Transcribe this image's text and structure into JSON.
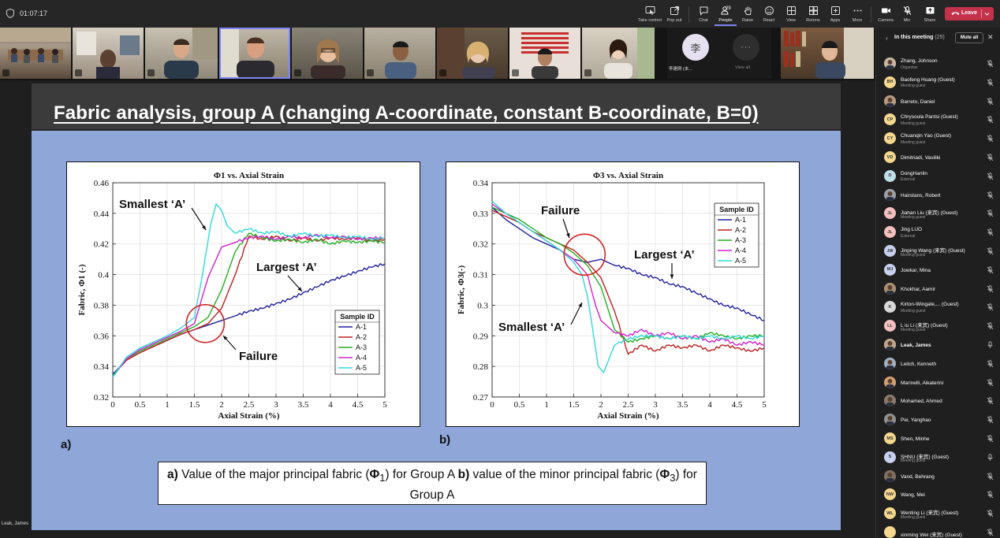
{
  "toolbar": {
    "timer": "01:07:17",
    "buttons": [
      {
        "id": "take-control",
        "label": "Take control",
        "icon": "take-control-icon"
      },
      {
        "id": "pop-out",
        "label": "Pop out",
        "icon": "pop-out-icon"
      },
      {
        "id": "chat",
        "label": "Chat",
        "icon": "chat-icon"
      },
      {
        "id": "people",
        "label": "People",
        "icon": "people-icon",
        "badge": "29",
        "active": true
      },
      {
        "id": "raise",
        "label": "Raise",
        "icon": "raise-hand-icon"
      },
      {
        "id": "react",
        "label": "React",
        "icon": "react-icon"
      },
      {
        "id": "view",
        "label": "View",
        "icon": "view-icon"
      },
      {
        "id": "rooms",
        "label": "Rooms",
        "icon": "rooms-icon"
      },
      {
        "id": "apps",
        "label": "Apps",
        "icon": "apps-icon"
      },
      {
        "id": "more",
        "label": "More",
        "icon": "more-icon"
      },
      {
        "id": "camera",
        "label": "Camera",
        "icon": "camera-icon"
      },
      {
        "id": "mic",
        "label": "Mic",
        "icon": "mic-off-icon"
      },
      {
        "id": "share",
        "label": "Share",
        "icon": "share-icon"
      }
    ],
    "leave_label": "Leave",
    "accent": "#7f85f5",
    "leave_color": "#c4314b"
  },
  "video_strip": {
    "avatar_tile": {
      "initial": "李",
      "name": "李建刚 (未..."
    },
    "more_tile": {
      "label": "View all"
    }
  },
  "slide": {
    "title": "Fabric analysis, group A (changing A-coordinate, constant B-coordinate, B=0)",
    "panel_a_label": "a)",
    "panel_b_label": "b)",
    "caption": {
      "a_bold": "a)",
      "a_text_before": " Value of the major principal fabric (",
      "a_sym": "Φ",
      "a_sub": "1",
      "a_text_after": ") for Group A ",
      "b_bold": "b)",
      "b_text_before": " value of the minor principal fabric  (",
      "b_sym": "Φ",
      "b_sub": "3",
      "b_text_after": ") for Group A"
    },
    "presenter": "Leak, James"
  },
  "chart_data": [
    {
      "type": "line",
      "title": "Φ1 vs. Axial Strain",
      "xlabel": "Axial Strain (%)",
      "ylabel": "Fabric, Φ1 (-)",
      "xlim": [
        0,
        5
      ],
      "ylim": [
        0.32,
        0.46
      ],
      "xticks": [
        "0",
        "0.5",
        "1",
        "1.5",
        "2",
        "2.5",
        "3",
        "3.5",
        "4",
        "4.5",
        "5"
      ],
      "yticks": [
        "0.32",
        "0.34",
        "0.36",
        "0.38",
        "0.4",
        "0.42",
        "0.44",
        "0.46"
      ],
      "legend_title": "Sample ID",
      "legend_position": "bottom-right",
      "grid": true,
      "annotations": [
        "Smallest ‘A’",
        "Largest ‘A’",
        "Failure"
      ],
      "series": [
        {
          "name": "A-1",
          "color": "#2020a0",
          "x": [
            0,
            0.25,
            0.5,
            0.75,
            1,
            1.25,
            1.5,
            1.75,
            2,
            2.25,
            2.5,
            2.75,
            3,
            3.25,
            3.5,
            3.75,
            4,
            4.25,
            4.5,
            4.75,
            5
          ],
          "y": [
            0.335,
            0.344,
            0.349,
            0.353,
            0.357,
            0.361,
            0.364,
            0.367,
            0.37,
            0.373,
            0.376,
            0.378,
            0.381,
            0.384,
            0.388,
            0.392,
            0.396,
            0.399,
            0.402,
            0.405,
            0.407
          ]
        },
        {
          "name": "A-2",
          "color": "#c02020",
          "x": [
            0,
            0.25,
            0.5,
            0.75,
            1,
            1.25,
            1.5,
            1.75,
            2,
            2.25,
            2.5,
            2.75,
            3,
            3.25,
            3.5,
            3.75,
            4,
            4.25,
            4.5,
            4.75,
            5
          ],
          "y": [
            0.334,
            0.344,
            0.349,
            0.353,
            0.357,
            0.361,
            0.364,
            0.368,
            0.378,
            0.4,
            0.425,
            0.423,
            0.425,
            0.422,
            0.424,
            0.422,
            0.424,
            0.423,
            0.424,
            0.422,
            0.423
          ]
        },
        {
          "name": "A-3",
          "color": "#20b020",
          "x": [
            0,
            0.25,
            0.5,
            0.75,
            1,
            1.25,
            1.5,
            1.75,
            2,
            2.25,
            2.5,
            2.75,
            3,
            3.25,
            3.5,
            3.75,
            4,
            4.25,
            4.5,
            4.75,
            5
          ],
          "y": [
            0.334,
            0.345,
            0.35,
            0.354,
            0.358,
            0.362,
            0.366,
            0.372,
            0.39,
            0.415,
            0.427,
            0.424,
            0.422,
            0.423,
            0.421,
            0.423,
            0.42,
            0.422,
            0.421,
            0.422,
            0.421
          ]
        },
        {
          "name": "A-4",
          "color": "#d020d0",
          "x": [
            0,
            0.25,
            0.5,
            0.75,
            1,
            1.25,
            1.5,
            1.75,
            2,
            2.25,
            2.5,
            2.75,
            3,
            3.25,
            3.5,
            3.75,
            4,
            4.25,
            4.5,
            4.75,
            5
          ],
          "y": [
            0.333,
            0.345,
            0.351,
            0.355,
            0.359,
            0.363,
            0.368,
            0.398,
            0.418,
            0.421,
            0.424,
            0.425,
            0.423,
            0.425,
            0.424,
            0.426,
            0.424,
            0.425,
            0.423,
            0.424,
            0.424
          ]
        },
        {
          "name": "A-5",
          "color": "#30d8d8",
          "x": [
            0,
            0.25,
            0.5,
            0.75,
            1,
            1.25,
            1.5,
            1.65,
            1.8,
            1.9,
            2,
            2.1,
            2.25,
            2.5,
            2.75,
            3,
            3.25,
            3.5,
            3.75,
            4,
            4.25,
            4.5,
            4.75,
            5
          ],
          "y": [
            0.333,
            0.346,
            0.352,
            0.356,
            0.36,
            0.365,
            0.372,
            0.4,
            0.433,
            0.446,
            0.442,
            0.432,
            0.427,
            0.43,
            0.427,
            0.428,
            0.425,
            0.427,
            0.425,
            0.426,
            0.424,
            0.425,
            0.423,
            0.424
          ]
        }
      ]
    },
    {
      "type": "line",
      "title": "Φ3 vs. Axial Strain",
      "xlabel": "Axial Strain (%)",
      "ylabel": "Fabric, Φ3(-)",
      "xlim": [
        0,
        5
      ],
      "ylim": [
        0.27,
        0.34
      ],
      "xticks": [
        "0",
        "0.5",
        "1",
        "1.5",
        "2",
        "2.5",
        "3",
        "3.5",
        "4",
        "4.5",
        "5"
      ],
      "yticks": [
        "0.27",
        "0.28",
        "0.29",
        "0.3",
        "0.31",
        "0.32",
        "0.33",
        "0.34"
      ],
      "legend_title": "Sample ID",
      "legend_position": "top-right",
      "grid": true,
      "annotations": [
        "Failure",
        "Largest ‘A’",
        "Smallest ‘A’"
      ],
      "series": [
        {
          "name": "A-1",
          "color": "#2020a0",
          "x": [
            0,
            0.25,
            0.5,
            0.75,
            1,
            1.25,
            1.5,
            1.75,
            2,
            2.25,
            2.5,
            2.75,
            3,
            3.25,
            3.5,
            3.75,
            4,
            4.25,
            4.5,
            4.75,
            5
          ],
          "y": [
            0.332,
            0.328,
            0.325,
            0.322,
            0.32,
            0.318,
            0.315,
            0.314,
            0.315,
            0.313,
            0.312,
            0.31,
            0.309,
            0.307,
            0.306,
            0.304,
            0.302,
            0.3,
            0.299,
            0.297,
            0.295
          ]
        },
        {
          "name": "A-2",
          "color": "#c02020",
          "x": [
            0,
            0.25,
            0.5,
            0.75,
            1,
            1.25,
            1.5,
            1.75,
            2,
            2.25,
            2.5,
            2.75,
            3,
            3.25,
            3.5,
            3.75,
            4,
            4.25,
            4.5,
            4.75,
            5
          ],
          "y": [
            0.331,
            0.329,
            0.327,
            0.324,
            0.322,
            0.32,
            0.318,
            0.314,
            0.309,
            0.298,
            0.284,
            0.287,
            0.285,
            0.287,
            0.286,
            0.287,
            0.285,
            0.287,
            0.286,
            0.285,
            0.286
          ]
        },
        {
          "name": "A-3",
          "color": "#20b020",
          "x": [
            0,
            0.25,
            0.5,
            0.75,
            1,
            1.25,
            1.5,
            1.75,
            2,
            2.25,
            2.5,
            2.75,
            3,
            3.25,
            3.5,
            3.75,
            4,
            4.25,
            4.5,
            4.75,
            5
          ],
          "y": [
            0.332,
            0.33,
            0.328,
            0.325,
            0.322,
            0.32,
            0.317,
            0.313,
            0.306,
            0.292,
            0.288,
            0.289,
            0.29,
            0.289,
            0.29,
            0.289,
            0.291,
            0.29,
            0.289,
            0.29,
            0.29
          ]
        },
        {
          "name": "A-4",
          "color": "#d020d0",
          "x": [
            0,
            0.25,
            0.5,
            0.75,
            1,
            1.25,
            1.5,
            1.75,
            1.9,
            2,
            2.25,
            2.5,
            2.75,
            3,
            3.25,
            3.5,
            3.75,
            4,
            4.25,
            4.5,
            4.75,
            5
          ],
          "y": [
            0.333,
            0.33,
            0.327,
            0.324,
            0.321,
            0.318,
            0.315,
            0.31,
            0.3,
            0.295,
            0.291,
            0.29,
            0.292,
            0.29,
            0.291,
            0.289,
            0.29,
            0.288,
            0.289,
            0.287,
            0.288,
            0.287
          ]
        },
        {
          "name": "A-5",
          "color": "#30d8d8",
          "x": [
            0,
            0.25,
            0.5,
            0.75,
            1,
            1.25,
            1.5,
            1.65,
            1.75,
            1.85,
            1.95,
            2.05,
            2.25,
            2.5,
            2.75,
            3,
            3.25,
            3.5,
            3.75,
            4,
            4.25,
            4.5,
            4.75,
            5
          ],
          "y": [
            0.334,
            0.33,
            0.327,
            0.324,
            0.321,
            0.318,
            0.314,
            0.31,
            0.303,
            0.292,
            0.28,
            0.278,
            0.287,
            0.289,
            0.29,
            0.29,
            0.289,
            0.29,
            0.289,
            0.29,
            0.289,
            0.29,
            0.289,
            0.29
          ]
        }
      ]
    }
  ],
  "participants_panel": {
    "title": "In this meeting",
    "count": "(29)",
    "mute_all_label": "Mute all",
    "people": [
      {
        "name": "Zhang, Johnson",
        "sub": "Organiser",
        "initials": "",
        "color": "#c9b8a0",
        "photo": true
      },
      {
        "name": "Baofeng Huang (Guest)",
        "sub": "Meeting guest",
        "initials": "BH",
        "color": "#f5d78e"
      },
      {
        "name": "Barreto, Daniel",
        "sub": "",
        "initials": "",
        "color": "#b89a80",
        "photo": true
      },
      {
        "name": "Chrysoula Pantsi (Guest)",
        "sub": "Meeting guest",
        "initials": "CP",
        "color": "#f5d78e"
      },
      {
        "name": "Chuanqin Yao (Guest)",
        "sub": "Meeting guest",
        "initials": "CY",
        "color": "#f5d78e"
      },
      {
        "name": "Dimitriadi, Vasiliki",
        "sub": "",
        "initials": "VD",
        "color": "#f5d78e"
      },
      {
        "name": "DongHanlin",
        "sub": "External",
        "initials": "D",
        "color": "#bde0e8"
      },
      {
        "name": "Hairstans, Robert",
        "sub": "",
        "initials": "",
        "color": "#9aa0a8",
        "photo": true
      },
      {
        "name": "Jiahan Liu (来宾) (Guest)",
        "sub": "Meeting guest",
        "initials": "JL",
        "color": "#f5c0c0"
      },
      {
        "name": "Jing LUO",
        "sub": "External",
        "initials": "JL",
        "color": "#f5c0c0"
      },
      {
        "name": "Jinping Wang (来宾) (Guest)",
        "sub": "Meeting guest",
        "initials": "JW",
        "color": "#c8d0f0"
      },
      {
        "name": "Jowkar, Mina",
        "sub": "",
        "initials": "MJ",
        "color": "#c8d0f0"
      },
      {
        "name": "Khokhar, Aamir",
        "sub": "",
        "initials": "",
        "color": "#a89070",
        "photo": true
      },
      {
        "name": "Kirton-Wingate,... (Guest)",
        "sub": "Meeting guest",
        "initials": "K",
        "color": "#d8d8d8"
      },
      {
        "name": "L iu Li (来宾) (Guest)",
        "sub": "Meeting guest",
        "initials": "LL",
        "color": "#f5c0c0"
      },
      {
        "name": "Leak, James",
        "sub": "",
        "initials": "",
        "color": "#c0a890",
        "photo": true,
        "bold": true,
        "mic_on": true
      },
      {
        "name": "Leitch, Kenneth",
        "sub": "",
        "initials": "",
        "color": "#a0b0c0",
        "photo": true
      },
      {
        "name": "Marinelli, Aikaterini",
        "sub": "",
        "initials": "",
        "color": "#d0a070",
        "photo": true
      },
      {
        "name": "Mohamed, Ahmed",
        "sub": "",
        "initials": "",
        "color": "#8a7a6a",
        "photo": true
      },
      {
        "name": "Pei, Yanghao",
        "sub": "",
        "initials": "",
        "color": "#909090",
        "photo": true
      },
      {
        "name": "Shen, Minhe",
        "sub": "",
        "initials": "MS",
        "color": "#f5d78e"
      },
      {
        "name": "SHNU (来宾) (Guest)",
        "sub": "Meeting guest",
        "initials": "S",
        "color": "#c8d0f0",
        "mic_on": true
      },
      {
        "name": "Vand, Behrang",
        "sub": "",
        "initials": "",
        "color": "#807060",
        "photo": true
      },
      {
        "name": "Wang, Mei",
        "sub": "",
        "initials": "NW",
        "color": "#f5d78e"
      },
      {
        "name": "Wenting Li (来宾) (Guest)",
        "sub": "Meeting guest",
        "initials": "WL",
        "color": "#f5d78e"
      },
      {
        "name": "xinming Wei (来宾) (Guest)",
        "sub": "",
        "initials": "",
        "color": "#f5d78e"
      }
    ]
  }
}
